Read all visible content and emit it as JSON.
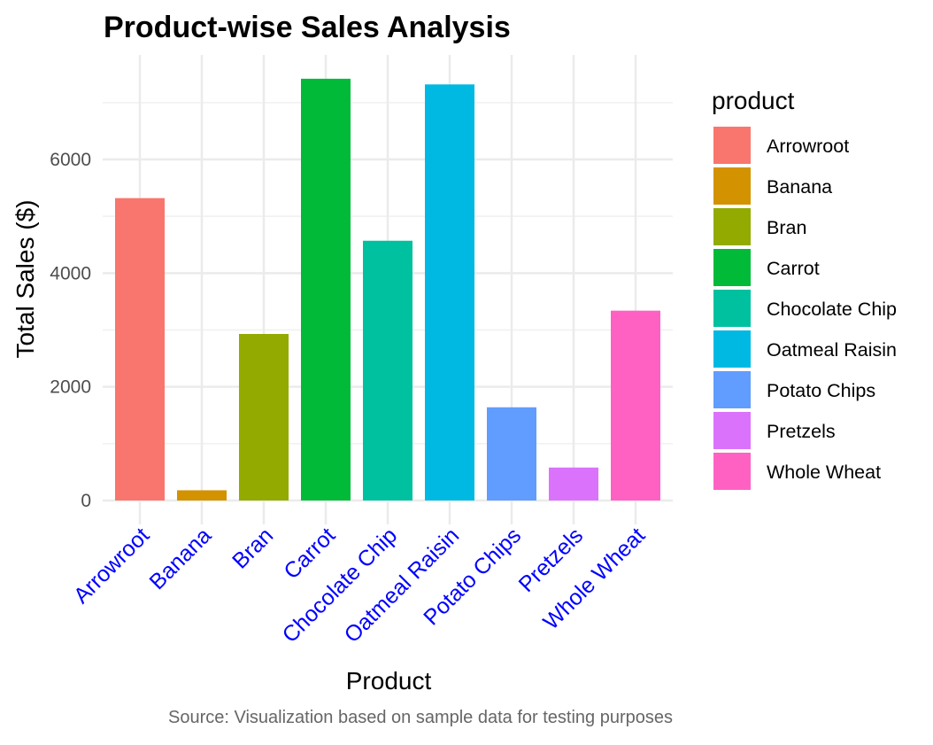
{
  "chart_data": {
    "type": "bar",
    "title": "Product-wise Sales Analysis",
    "xlabel": "Product",
    "ylabel": "Total Sales ($)",
    "caption": "Source: Visualization based on sample data for testing purposes",
    "legend_title": "product",
    "legend_position": "right",
    "grid": true,
    "ylim": [
      0,
      7800
    ],
    "yticks": [
      0,
      2000,
      4000,
      6000
    ],
    "categories": [
      "Arrowroot",
      "Banana",
      "Bran",
      "Carrot",
      "Chocolate Chip",
      "Oatmeal Raisin",
      "Potato Chips",
      "Pretzels",
      "Whole Wheat"
    ],
    "values": [
      5320,
      180,
      2930,
      7420,
      4570,
      7320,
      1640,
      580,
      3340
    ],
    "colors": [
      "#F8766D",
      "#D39200",
      "#93AA00",
      "#00BA38",
      "#00C19F",
      "#00B9E3",
      "#619CFF",
      "#DB72FB",
      "#FF61C3"
    ],
    "x_tick_color": "#0000FF"
  }
}
